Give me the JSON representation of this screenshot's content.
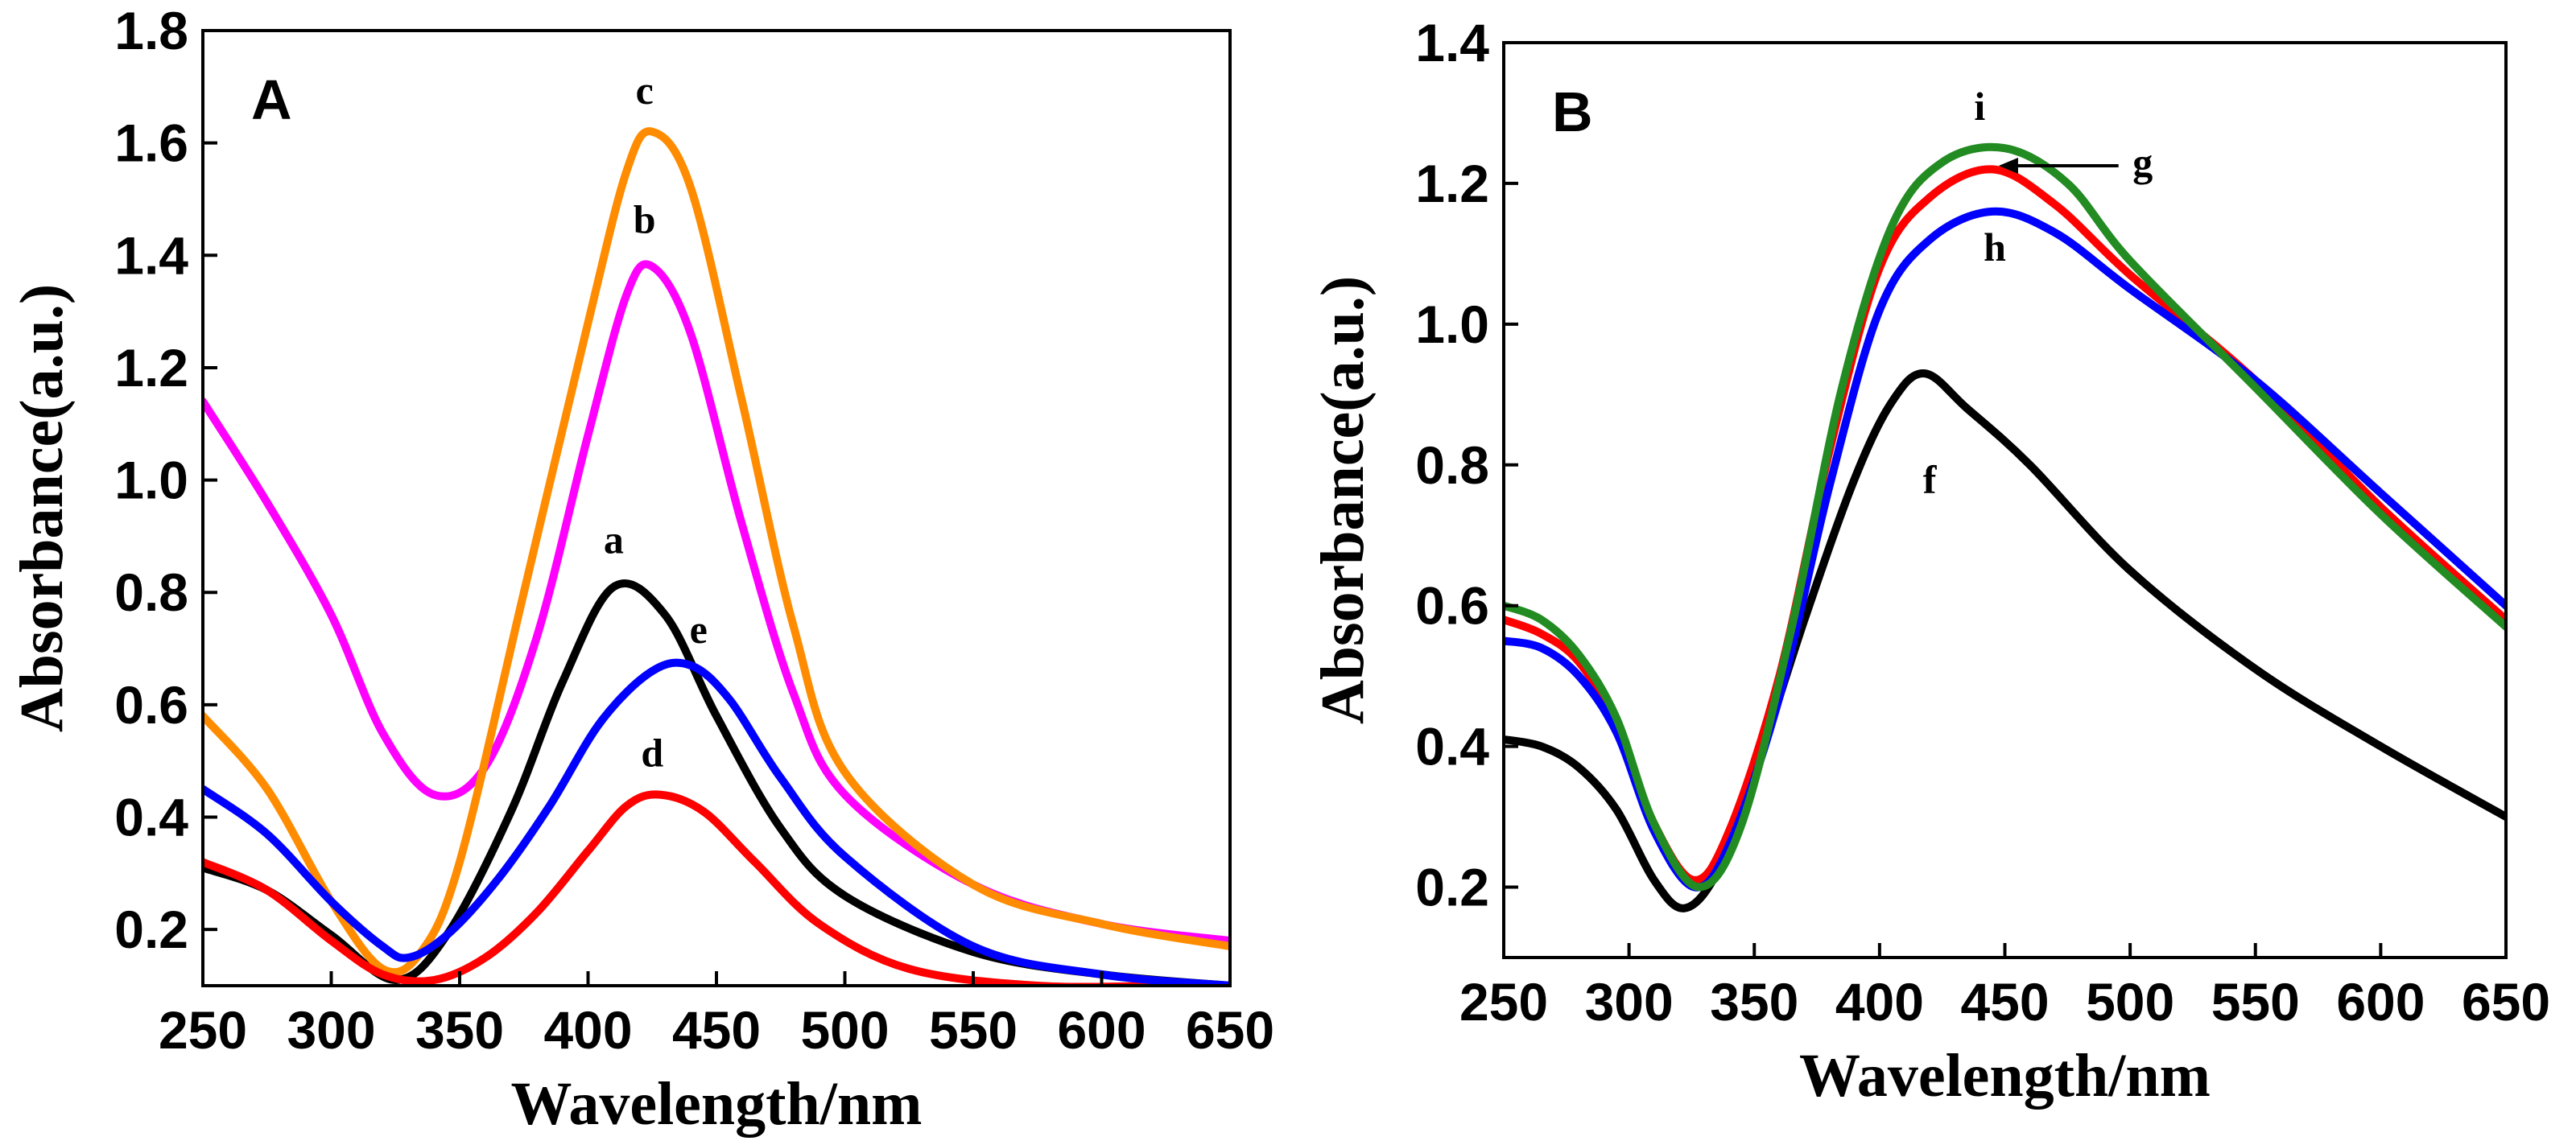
{
  "chart_data": [
    {
      "type": "line",
      "panel_label": "A",
      "xlabel": "Wavelength/nm",
      "ylabel": "Absorbance(a.u.)",
      "xlim": [
        250,
        650
      ],
      "ylim": [
        0.1,
        1.8
      ],
      "xticks": [
        "250",
        "300",
        "350",
        "400",
        "450",
        "500",
        "550",
        "600",
        "650"
      ],
      "yticks": [
        "0.2",
        "0.4",
        "0.6",
        "0.8",
        "1.0",
        "1.2",
        "1.4",
        "1.6",
        "1.8"
      ],
      "series": [
        {
          "name": "a",
          "color": "#000000",
          "x": [
            250,
            275,
            300,
            325,
            345,
            370,
            390,
            410,
            430,
            450,
            475,
            500,
            550,
            600,
            650
          ],
          "y": [
            0.31,
            0.27,
            0.19,
            0.11,
            0.19,
            0.41,
            0.64,
            0.81,
            0.76,
            0.58,
            0.38,
            0.26,
            0.16,
            0.12,
            0.1
          ],
          "label_at": [
            410,
            0.87
          ]
        },
        {
          "name": "b",
          "color": "#ff00ff",
          "x": [
            250,
            275,
            300,
            320,
            340,
            360,
            380,
            400,
            415,
            425,
            440,
            460,
            480,
            500,
            550,
            600,
            650
          ],
          "y": [
            1.14,
            0.96,
            0.76,
            0.55,
            0.44,
            0.49,
            0.72,
            1.08,
            1.33,
            1.38,
            1.26,
            0.92,
            0.62,
            0.44,
            0.28,
            0.21,
            0.18
          ],
          "label_at": [
            422,
            1.44
          ]
        },
        {
          "name": "c",
          "color": "#ff8c00",
          "x": [
            250,
            275,
            300,
            320,
            335,
            350,
            375,
            400,
            415,
            425,
            440,
            460,
            480,
            500,
            550,
            600,
            650
          ],
          "y": [
            0.58,
            0.45,
            0.25,
            0.13,
            0.16,
            0.32,
            0.8,
            1.28,
            1.55,
            1.62,
            1.52,
            1.14,
            0.74,
            0.48,
            0.28,
            0.21,
            0.17
          ],
          "label_at": [
            422,
            1.67
          ]
        },
        {
          "name": "d",
          "color": "#ff0000",
          "x": [
            250,
            275,
            300,
            320,
            340,
            360,
            380,
            400,
            415,
            428,
            445,
            465,
            490,
            525,
            575,
            625,
            650
          ],
          "y": [
            0.32,
            0.27,
            0.18,
            0.12,
            0.11,
            0.15,
            0.23,
            0.34,
            0.42,
            0.44,
            0.41,
            0.32,
            0.21,
            0.13,
            0.1,
            0.1,
            0.1
          ],
          "label_at": [
            425,
            0.49
          ]
        },
        {
          "name": "e",
          "color": "#0000ff",
          "x": [
            250,
            275,
            300,
            320,
            330,
            345,
            365,
            385,
            405,
            425,
            440,
            455,
            475,
            500,
            550,
            600,
            650
          ],
          "y": [
            0.45,
            0.37,
            0.25,
            0.17,
            0.15,
            0.19,
            0.29,
            0.42,
            0.57,
            0.66,
            0.67,
            0.61,
            0.47,
            0.33,
            0.17,
            0.12,
            0.1
          ],
          "label_at": [
            443,
            0.71
          ]
        }
      ]
    },
    {
      "type": "line",
      "panel_label": "B",
      "xlabel": "Wavelength/nm",
      "ylabel": "Absorbance(a.u.)",
      "xlim": [
        250,
        650
      ],
      "ylim": [
        0.1,
        1.4
      ],
      "xticks": [
        "250",
        "300",
        "350",
        "400",
        "450",
        "500",
        "550",
        "600",
        "650"
      ],
      "yticks": [
        "0.2",
        "0.4",
        "0.6",
        "0.8",
        "1.0",
        "1.2",
        "1.4"
      ],
      "series": [
        {
          "name": "f",
          "color": "#000000",
          "x": [
            250,
            265,
            280,
            295,
            310,
            322,
            335,
            350,
            370,
            390,
            405,
            418,
            435,
            460,
            500,
            550,
            600,
            650
          ],
          "y": [
            0.41,
            0.4,
            0.37,
            0.31,
            0.21,
            0.17,
            0.22,
            0.36,
            0.58,
            0.78,
            0.89,
            0.93,
            0.88,
            0.8,
            0.65,
            0.51,
            0.4,
            0.3
          ],
          "label_at": [
            420,
            0.76
          ]
        },
        {
          "name": "g",
          "color": "#ff0000",
          "x": [
            250,
            265,
            280,
            295,
            310,
            326,
            340,
            360,
            380,
            400,
            420,
            445,
            470,
            500,
            550,
            600,
            650
          ],
          "y": [
            0.58,
            0.56,
            0.52,
            0.43,
            0.29,
            0.21,
            0.28,
            0.5,
            0.82,
            1.08,
            1.18,
            1.22,
            1.17,
            1.07,
            0.92,
            0.74,
            0.58
          ],
          "label_at": [
            505,
            1.21
          ]
        },
        {
          "name": "h",
          "color": "#0000ff",
          "x": [
            250,
            265,
            280,
            295,
            310,
            326,
            340,
            360,
            380,
            400,
            420,
            445,
            470,
            500,
            550,
            600,
            650
          ],
          "y": [
            0.55,
            0.54,
            0.5,
            0.42,
            0.28,
            0.2,
            0.26,
            0.47,
            0.77,
            1.02,
            1.12,
            1.16,
            1.13,
            1.05,
            0.92,
            0.76,
            0.6
          ],
          "label_at": [
            446,
            1.09
          ]
        },
        {
          "name": "i",
          "color": "#228b22",
          "x": [
            250,
            265,
            280,
            295,
            310,
            328,
            345,
            365,
            385,
            405,
            425,
            450,
            475,
            500,
            550,
            600,
            650
          ],
          "y": [
            0.6,
            0.58,
            0.53,
            0.44,
            0.29,
            0.2,
            0.29,
            0.57,
            0.91,
            1.14,
            1.23,
            1.25,
            1.2,
            1.09,
            0.91,
            0.73,
            0.57
          ],
          "label_at": [
            440,
            1.29
          ]
        }
      ]
    }
  ]
}
